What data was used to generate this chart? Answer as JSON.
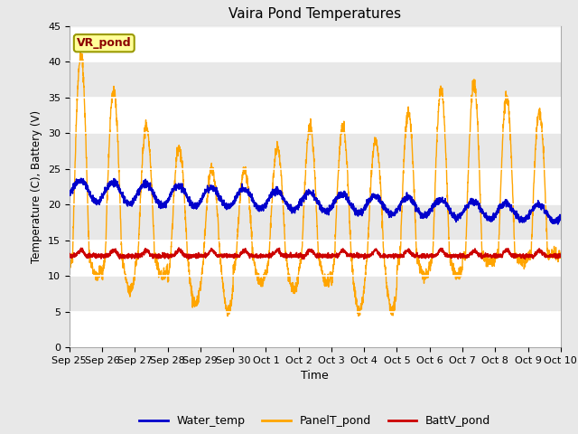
{
  "title": "Vaira Pond Temperatures",
  "xlabel": "Time",
  "ylabel": "Temperature (C), Battery (V)",
  "ylim": [
    0,
    45
  ],
  "yticks": [
    0,
    5,
    10,
    15,
    20,
    25,
    30,
    35,
    40,
    45
  ],
  "site_label": "VR_pond",
  "fig_bg_color": "#e8e8e8",
  "plot_bg_color": "#ffffff",
  "band_color": "#e8e8e8",
  "water_color": "#0000cc",
  "panel_color": "#ffa500",
  "batt_color": "#cc0000",
  "legend_labels": [
    "Water_temp",
    "PanelT_pond",
    "BattV_pond"
  ],
  "x_tick_labels": [
    "Sep 25",
    "Sep 26",
    "Sep 27",
    "Sep 28",
    "Sep 29",
    "Sep 30",
    "Oct 1",
    "Oct 2",
    "Oct 3",
    "Oct 4",
    "Oct 5",
    "Oct 6",
    "Oct 7",
    "Oct 8",
    "Oct 9",
    "Oct 10"
  ]
}
